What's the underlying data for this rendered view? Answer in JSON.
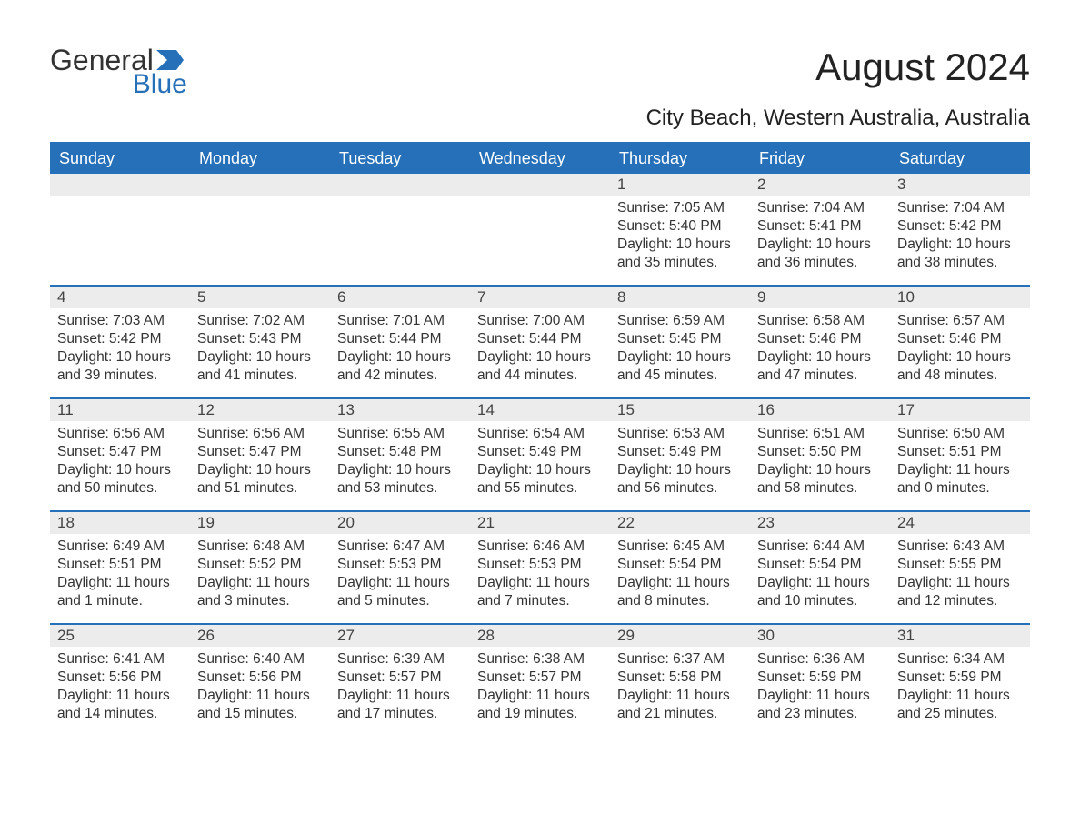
{
  "logo": {
    "word1": "General",
    "word2": "Blue",
    "word1_color": "#333333",
    "word2_color": "#2570b8",
    "flag_color": "#2570b8"
  },
  "title": "August 2024",
  "subtitle": "City Beach, Western Australia, Australia",
  "colors": {
    "header_bg": "#2570b8",
    "header_text": "#ffffff",
    "daynum_bg": "#ececec",
    "text": "#333333",
    "border": "#2570b8",
    "page_bg": "#ffffff"
  },
  "typography": {
    "title_fontsize": 42,
    "subtitle_fontsize": 24,
    "dayhead_fontsize": 18,
    "daynum_fontsize": 17,
    "info_fontsize": 15.5,
    "font_family": "Arial"
  },
  "day_headers": [
    "Sunday",
    "Monday",
    "Tuesday",
    "Wednesday",
    "Thursday",
    "Friday",
    "Saturday"
  ],
  "weeks": [
    [
      null,
      null,
      null,
      null,
      {
        "day": "1",
        "sunrise": "Sunrise: 7:05 AM",
        "sunset": "Sunset: 5:40 PM",
        "daylight": "Daylight: 10 hours and 35 minutes."
      },
      {
        "day": "2",
        "sunrise": "Sunrise: 7:04 AM",
        "sunset": "Sunset: 5:41 PM",
        "daylight": "Daylight: 10 hours and 36 minutes."
      },
      {
        "day": "3",
        "sunrise": "Sunrise: 7:04 AM",
        "sunset": "Sunset: 5:42 PM",
        "daylight": "Daylight: 10 hours and 38 minutes."
      }
    ],
    [
      {
        "day": "4",
        "sunrise": "Sunrise: 7:03 AM",
        "sunset": "Sunset: 5:42 PM",
        "daylight": "Daylight: 10 hours and 39 minutes."
      },
      {
        "day": "5",
        "sunrise": "Sunrise: 7:02 AM",
        "sunset": "Sunset: 5:43 PM",
        "daylight": "Daylight: 10 hours and 41 minutes."
      },
      {
        "day": "6",
        "sunrise": "Sunrise: 7:01 AM",
        "sunset": "Sunset: 5:44 PM",
        "daylight": "Daylight: 10 hours and 42 minutes."
      },
      {
        "day": "7",
        "sunrise": "Sunrise: 7:00 AM",
        "sunset": "Sunset: 5:44 PM",
        "daylight": "Daylight: 10 hours and 44 minutes."
      },
      {
        "day": "8",
        "sunrise": "Sunrise: 6:59 AM",
        "sunset": "Sunset: 5:45 PM",
        "daylight": "Daylight: 10 hours and 45 minutes."
      },
      {
        "day": "9",
        "sunrise": "Sunrise: 6:58 AM",
        "sunset": "Sunset: 5:46 PM",
        "daylight": "Daylight: 10 hours and 47 minutes."
      },
      {
        "day": "10",
        "sunrise": "Sunrise: 6:57 AM",
        "sunset": "Sunset: 5:46 PM",
        "daylight": "Daylight: 10 hours and 48 minutes."
      }
    ],
    [
      {
        "day": "11",
        "sunrise": "Sunrise: 6:56 AM",
        "sunset": "Sunset: 5:47 PM",
        "daylight": "Daylight: 10 hours and 50 minutes."
      },
      {
        "day": "12",
        "sunrise": "Sunrise: 6:56 AM",
        "sunset": "Sunset: 5:47 PM",
        "daylight": "Daylight: 10 hours and 51 minutes."
      },
      {
        "day": "13",
        "sunrise": "Sunrise: 6:55 AM",
        "sunset": "Sunset: 5:48 PM",
        "daylight": "Daylight: 10 hours and 53 minutes."
      },
      {
        "day": "14",
        "sunrise": "Sunrise: 6:54 AM",
        "sunset": "Sunset: 5:49 PM",
        "daylight": "Daylight: 10 hours and 55 minutes."
      },
      {
        "day": "15",
        "sunrise": "Sunrise: 6:53 AM",
        "sunset": "Sunset: 5:49 PM",
        "daylight": "Daylight: 10 hours and 56 minutes."
      },
      {
        "day": "16",
        "sunrise": "Sunrise: 6:51 AM",
        "sunset": "Sunset: 5:50 PM",
        "daylight": "Daylight: 10 hours and 58 minutes."
      },
      {
        "day": "17",
        "sunrise": "Sunrise: 6:50 AM",
        "sunset": "Sunset: 5:51 PM",
        "daylight": "Daylight: 11 hours and 0 minutes."
      }
    ],
    [
      {
        "day": "18",
        "sunrise": "Sunrise: 6:49 AM",
        "sunset": "Sunset: 5:51 PM",
        "daylight": "Daylight: 11 hours and 1 minute."
      },
      {
        "day": "19",
        "sunrise": "Sunrise: 6:48 AM",
        "sunset": "Sunset: 5:52 PM",
        "daylight": "Daylight: 11 hours and 3 minutes."
      },
      {
        "day": "20",
        "sunrise": "Sunrise: 6:47 AM",
        "sunset": "Sunset: 5:53 PM",
        "daylight": "Daylight: 11 hours and 5 minutes."
      },
      {
        "day": "21",
        "sunrise": "Sunrise: 6:46 AM",
        "sunset": "Sunset: 5:53 PM",
        "daylight": "Daylight: 11 hours and 7 minutes."
      },
      {
        "day": "22",
        "sunrise": "Sunrise: 6:45 AM",
        "sunset": "Sunset: 5:54 PM",
        "daylight": "Daylight: 11 hours and 8 minutes."
      },
      {
        "day": "23",
        "sunrise": "Sunrise: 6:44 AM",
        "sunset": "Sunset: 5:54 PM",
        "daylight": "Daylight: 11 hours and 10 minutes."
      },
      {
        "day": "24",
        "sunrise": "Sunrise: 6:43 AM",
        "sunset": "Sunset: 5:55 PM",
        "daylight": "Daylight: 11 hours and 12 minutes."
      }
    ],
    [
      {
        "day": "25",
        "sunrise": "Sunrise: 6:41 AM",
        "sunset": "Sunset: 5:56 PM",
        "daylight": "Daylight: 11 hours and 14 minutes."
      },
      {
        "day": "26",
        "sunrise": "Sunrise: 6:40 AM",
        "sunset": "Sunset: 5:56 PM",
        "daylight": "Daylight: 11 hours and 15 minutes."
      },
      {
        "day": "27",
        "sunrise": "Sunrise: 6:39 AM",
        "sunset": "Sunset: 5:57 PM",
        "daylight": "Daylight: 11 hours and 17 minutes."
      },
      {
        "day": "28",
        "sunrise": "Sunrise: 6:38 AM",
        "sunset": "Sunset: 5:57 PM",
        "daylight": "Daylight: 11 hours and 19 minutes."
      },
      {
        "day": "29",
        "sunrise": "Sunrise: 6:37 AM",
        "sunset": "Sunset: 5:58 PM",
        "daylight": "Daylight: 11 hours and 21 minutes."
      },
      {
        "day": "30",
        "sunrise": "Sunrise: 6:36 AM",
        "sunset": "Sunset: 5:59 PM",
        "daylight": "Daylight: 11 hours and 23 minutes."
      },
      {
        "day": "31",
        "sunrise": "Sunrise: 6:34 AM",
        "sunset": "Sunset: 5:59 PM",
        "daylight": "Daylight: 11 hours and 25 minutes."
      }
    ]
  ]
}
